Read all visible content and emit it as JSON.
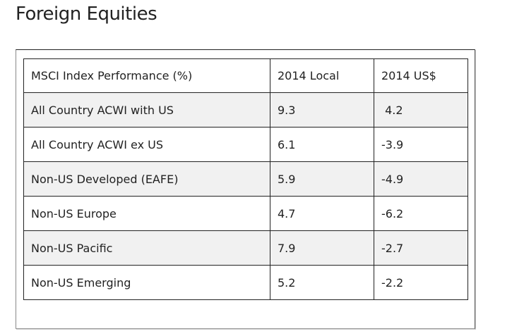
{
  "page": {
    "title": "Foreign Equities"
  },
  "table": {
    "headers": [
      "MSCI Index Performance (%)",
      "2014 Local",
      "2014 US$"
    ],
    "rows": [
      [
        "All Country ACWI with US",
        "9.3",
        " 4.2"
      ],
      [
        "All Country ACWI ex US",
        "6.1",
        "-3.9"
      ],
      [
        "Non-US Developed (EAFE)",
        "5.9",
        "-4.9"
      ],
      [
        "Non-US Europe",
        "4.7",
        "-6.2"
      ],
      [
        "Non-US Pacific",
        "7.9",
        "-2.7"
      ],
      [
        "Non-US Emerging",
        "5.2",
        "-2.2"
      ]
    ]
  }
}
